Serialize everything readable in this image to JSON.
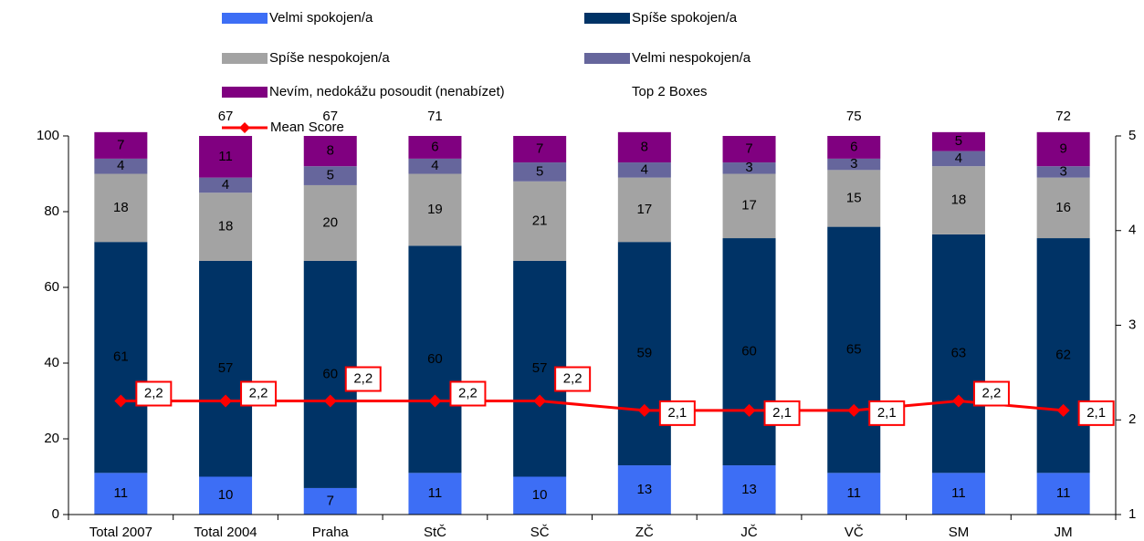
{
  "chart_data": {
    "type": "stacked_bar_line",
    "categories": [
      "Total 2007",
      "Total 2004",
      "Praha",
      "StČ",
      "SČ",
      "ZČ",
      "JČ",
      "VČ",
      "SM",
      "JM"
    ],
    "series": [
      {
        "name": "Velmi spokojen/a",
        "color": "#3d6ef5",
        "values": [
          11,
          10,
          7,
          11,
          10,
          13,
          13,
          11,
          11,
          11
        ]
      },
      {
        "name": "Spíše spokojen/a",
        "color": "#003366",
        "values": [
          61,
          57,
          60,
          60,
          57,
          59,
          60,
          65,
          63,
          62
        ]
      },
      {
        "name": "Spíše nespokojen/a",
        "color": "#a3a3a3",
        "values": [
          18,
          18,
          20,
          19,
          21,
          17,
          17,
          15,
          18,
          16
        ]
      },
      {
        "name": "Velmi nespokojen/a",
        "color": "#66669c",
        "values": [
          4,
          4,
          5,
          4,
          5,
          4,
          3,
          3,
          4,
          3
        ]
      },
      {
        "name": "Nevím, nedokážu posoudit (nenabízet)",
        "color": "#800080",
        "values": [
          7,
          11,
          8,
          6,
          7,
          8,
          7,
          6,
          5,
          9
        ]
      }
    ],
    "top_boxes": {
      "name": "Top 2 Boxes",
      "values": [
        null,
        67,
        67,
        71,
        null,
        null,
        null,
        75,
        null,
        72
      ]
    },
    "line": {
      "name": "Mean Score",
      "color": "#ff0000",
      "axis": "y2",
      "values": [
        2.2,
        2.2,
        2.2,
        2.2,
        2.2,
        2.1,
        2.1,
        2.1,
        2.2,
        2.1
      ],
      "value_labels": [
        "2,2",
        "2,2",
        "2,2",
        "2,2",
        "2,2",
        "2,1",
        "2,1",
        "2,1",
        "2,2",
        "2,1"
      ]
    },
    "ylim": [
      0,
      100
    ],
    "yticks": [
      0,
      20,
      40,
      60,
      80,
      100
    ],
    "y2lim": [
      1,
      5
    ],
    "y2ticks": [
      1,
      2,
      3,
      4,
      5
    ]
  }
}
